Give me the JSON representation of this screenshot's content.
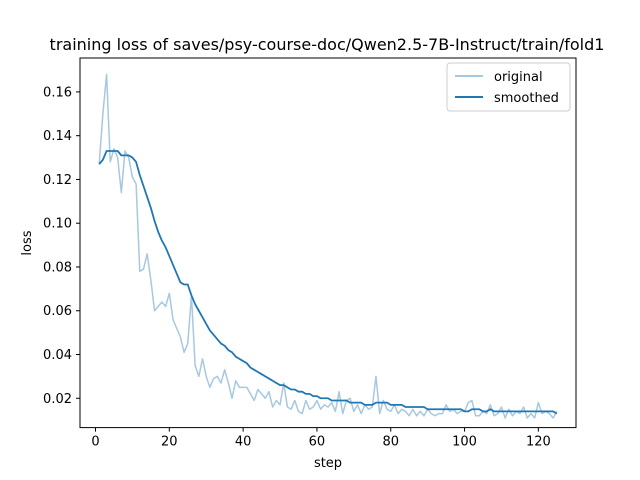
{
  "chart_data": {
    "type": "line",
    "title": "training loss of saves/psy-course-doc/Qwen2.5-7B-Instruct/train/fold1",
    "xlabel": "step",
    "ylabel": "loss",
    "xlim": [
      -4.2,
      130.2
    ],
    "ylim": [
      0.0066,
      0.1755
    ],
    "xticks": [
      0,
      20,
      40,
      60,
      80,
      100,
      120
    ],
    "yticks": [
      0.02,
      0.04,
      0.06,
      0.08,
      0.1,
      0.12,
      0.14,
      0.16
    ],
    "ytick_labels": [
      "0.02",
      "0.04",
      "0.06",
      "0.08",
      "0.10",
      "0.12",
      "0.14",
      "0.16"
    ],
    "legend_position": "top-right",
    "series": [
      {
        "name": "original",
        "color": "#a6c8e0",
        "x": [
          1,
          2,
          3,
          4,
          5,
          6,
          7,
          8,
          9,
          10,
          11,
          12,
          13,
          14,
          15,
          16,
          17,
          18,
          19,
          20,
          21,
          22,
          23,
          24,
          25,
          26,
          27,
          28,
          29,
          30,
          31,
          32,
          33,
          34,
          35,
          36,
          37,
          38,
          39,
          40,
          41,
          42,
          43,
          44,
          45,
          46,
          47,
          48,
          49,
          50,
          51,
          52,
          53,
          54,
          55,
          56,
          57,
          58,
          59,
          60,
          61,
          62,
          63,
          64,
          65,
          66,
          67,
          68,
          69,
          70,
          71,
          72,
          73,
          74,
          75,
          76,
          77,
          78,
          79,
          80,
          81,
          82,
          83,
          84,
          85,
          86,
          87,
          88,
          89,
          90,
          91,
          92,
          93,
          94,
          95,
          96,
          97,
          98,
          99,
          100,
          101,
          102,
          103,
          104,
          105,
          106,
          107,
          108,
          109,
          110,
          111,
          112,
          113,
          114,
          115,
          116,
          117,
          118,
          119,
          120,
          121,
          122,
          123,
          124,
          125
        ],
        "values": [
          0.127,
          0.15,
          0.168,
          0.128,
          0.134,
          0.13,
          0.114,
          0.133,
          0.13,
          0.121,
          0.118,
          0.078,
          0.079,
          0.086,
          0.074,
          0.06,
          0.062,
          0.064,
          0.062,
          0.068,
          0.056,
          0.052,
          0.048,
          0.041,
          0.045,
          0.067,
          0.035,
          0.03,
          0.038,
          0.03,
          0.025,
          0.029,
          0.03,
          0.027,
          0.033,
          0.027,
          0.02,
          0.028,
          0.025,
          0.025,
          0.025,
          0.022,
          0.019,
          0.024,
          0.022,
          0.02,
          0.023,
          0.016,
          0.019,
          0.017,
          0.027,
          0.016,
          0.015,
          0.019,
          0.014,
          0.013,
          0.019,
          0.015,
          0.016,
          0.019,
          0.015,
          0.017,
          0.016,
          0.018,
          0.014,
          0.023,
          0.013,
          0.019,
          0.02,
          0.014,
          0.017,
          0.013,
          0.017,
          0.015,
          0.016,
          0.03,
          0.013,
          0.019,
          0.015,
          0.014,
          0.017,
          0.013,
          0.015,
          0.014,
          0.012,
          0.015,
          0.012,
          0.014,
          0.012,
          0.015,
          0.013,
          0.012,
          0.013,
          0.013,
          0.017,
          0.014,
          0.015,
          0.013,
          0.014,
          0.014,
          0.018,
          0.019,
          0.012,
          0.012,
          0.014,
          0.013,
          0.017,
          0.012,
          0.013,
          0.016,
          0.011,
          0.015,
          0.012,
          0.014,
          0.013,
          0.016,
          0.011,
          0.013,
          0.011,
          0.018,
          0.013,
          0.014,
          0.013,
          0.011,
          0.014
        ]
      },
      {
        "name": "smoothed",
        "color": "#1f77b4",
        "x": [
          1,
          2,
          3,
          4,
          5,
          6,
          7,
          8,
          9,
          10,
          11,
          12,
          13,
          14,
          15,
          16,
          17,
          18,
          19,
          20,
          21,
          22,
          23,
          24,
          25,
          26,
          27,
          28,
          29,
          30,
          31,
          32,
          33,
          34,
          35,
          36,
          37,
          38,
          39,
          40,
          41,
          42,
          43,
          44,
          45,
          46,
          47,
          48,
          49,
          50,
          51,
          52,
          53,
          54,
          55,
          56,
          57,
          58,
          59,
          60,
          61,
          62,
          63,
          64,
          65,
          66,
          67,
          68,
          69,
          70,
          71,
          72,
          73,
          74,
          75,
          76,
          77,
          78,
          79,
          80,
          81,
          82,
          83,
          84,
          85,
          86,
          87,
          88,
          89,
          90,
          91,
          92,
          93,
          94,
          95,
          96,
          97,
          98,
          99,
          100,
          101,
          102,
          103,
          104,
          105,
          106,
          107,
          108,
          109,
          110,
          111,
          112,
          113,
          114,
          115,
          116,
          117,
          118,
          119,
          120,
          121,
          122,
          123,
          124,
          125
        ],
        "values": [
          0.127,
          0.129,
          0.133,
          0.133,
          0.133,
          0.133,
          0.131,
          0.131,
          0.131,
          0.13,
          0.128,
          0.122,
          0.117,
          0.112,
          0.107,
          0.101,
          0.096,
          0.092,
          0.089,
          0.085,
          0.081,
          0.077,
          0.073,
          0.072,
          0.072,
          0.067,
          0.063,
          0.06,
          0.057,
          0.054,
          0.051,
          0.049,
          0.047,
          0.045,
          0.044,
          0.042,
          0.041,
          0.039,
          0.038,
          0.037,
          0.036,
          0.034,
          0.033,
          0.032,
          0.031,
          0.03,
          0.029,
          0.028,
          0.027,
          0.026,
          0.026,
          0.025,
          0.024,
          0.024,
          0.023,
          0.023,
          0.022,
          0.022,
          0.021,
          0.021,
          0.02,
          0.02,
          0.02,
          0.019,
          0.019,
          0.019,
          0.019,
          0.019,
          0.018,
          0.018,
          0.018,
          0.018,
          0.017,
          0.017,
          0.017,
          0.018,
          0.018,
          0.018,
          0.018,
          0.017,
          0.017,
          0.017,
          0.017,
          0.016,
          0.016,
          0.016,
          0.016,
          0.016,
          0.016,
          0.015,
          0.015,
          0.015,
          0.015,
          0.015,
          0.015,
          0.015,
          0.015,
          0.015,
          0.015,
          0.014,
          0.014,
          0.015,
          0.015,
          0.015,
          0.014,
          0.014,
          0.015,
          0.014,
          0.014,
          0.014,
          0.014,
          0.014,
          0.014,
          0.014,
          0.014,
          0.014,
          0.014,
          0.014,
          0.014,
          0.014,
          0.014,
          0.014,
          0.014,
          0.014,
          0.013
        ]
      }
    ]
  }
}
